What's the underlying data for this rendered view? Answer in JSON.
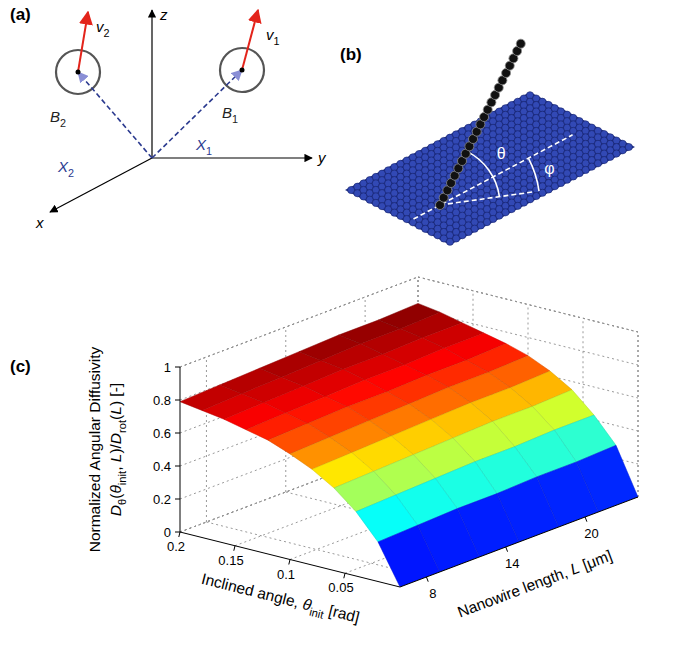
{
  "panel_a": {
    "label": "(a)",
    "axis_labels": [
      "z",
      "y",
      "x"
    ],
    "bodies": [
      {
        "name": [
          {
            "text": "B",
            "italic": true
          },
          {
            "text": "2",
            "sub": true
          }
        ],
        "velocity": [
          {
            "text": "v",
            "italic": true
          },
          {
            "text": "2",
            "sub": true
          }
        ],
        "position": [
          {
            "text": "X",
            "italic": true
          },
          {
            "text": "2",
            "sub": true
          }
        ]
      },
      {
        "name": [
          {
            "text": "B",
            "italic": true
          },
          {
            "text": "1",
            "sub": true
          }
        ],
        "velocity": [
          {
            "text": "v",
            "italic": true
          },
          {
            "text": "1",
            "sub": true
          }
        ],
        "position": [
          {
            "text": "X",
            "italic": true
          },
          {
            "text": "1",
            "sub": true
          }
        ]
      }
    ]
  },
  "panel_b": {
    "label": "(b)",
    "angles": [
      "θ",
      "φ"
    ]
  },
  "chart_data": {
    "type": "surface",
    "label": "(c)",
    "zlabel": [
      [
        {
          "text": "Normalized Angular Diffusivity"
        }
      ],
      [
        {
          "text": "D",
          "italic": true
        },
        {
          "text": "θ",
          "sub": true
        },
        {
          "text": "("
        },
        {
          "text": "θ",
          "italic": true
        },
        {
          "text": "init",
          "sub": true
        },
        {
          "text": ", "
        },
        {
          "text": "L",
          "italic": true
        },
        {
          "text": ")/"
        },
        {
          "text": "D",
          "italic": true
        },
        {
          "text": "rot",
          "sub": true
        },
        {
          "text": "("
        },
        {
          "text": "L",
          "italic": true
        },
        {
          "text": ") [-]"
        }
      ]
    ],
    "xlabel": [
      {
        "text": "Inclined angle, "
      },
      {
        "text": "θ",
        "italic": true
      },
      {
        "text": "init",
        "sub": true
      },
      {
        "text": " [rad]"
      }
    ],
    "ylabel": [
      {
        "text": "Nanowire length, "
      },
      {
        "text": "L",
        "italic": true
      },
      {
        "text": " [μm]"
      }
    ],
    "x": [
      0,
      0.02,
      0.04,
      0.06,
      0.08,
      0.1,
      0.12,
      0.14,
      0.16,
      0.18,
      0.2
    ],
    "y": [
      6,
      9,
      12,
      15,
      18,
      21,
      24
    ],
    "values": [
      [
        0,
        0.24,
        0.39,
        0.5,
        0.58,
        0.64,
        0.69,
        0.72,
        0.75,
        0.77,
        0.79
      ],
      [
        0,
        0.25,
        0.4,
        0.51,
        0.59,
        0.65,
        0.7,
        0.73,
        0.76,
        0.78,
        0.8
      ],
      [
        0,
        0.26,
        0.41,
        0.52,
        0.6,
        0.66,
        0.71,
        0.74,
        0.77,
        0.79,
        0.81
      ],
      [
        0,
        0.26,
        0.42,
        0.53,
        0.61,
        0.67,
        0.71,
        0.75,
        0.78,
        0.8,
        0.82
      ],
      [
        0,
        0.27,
        0.42,
        0.54,
        0.62,
        0.68,
        0.72,
        0.75,
        0.78,
        0.81,
        0.83
      ],
      [
        0,
        0.27,
        0.43,
        0.54,
        0.62,
        0.68,
        0.72,
        0.76,
        0.79,
        0.81,
        0.83
      ],
      [
        0,
        0.28,
        0.43,
        0.55,
        0.63,
        0.69,
        0.73,
        0.76,
        0.79,
        0.82,
        0.84
      ]
    ],
    "xlim": [
      0,
      0.2
    ],
    "xticks": [
      0.05,
      0.1,
      0.15,
      0.2
    ],
    "ylim": [
      6,
      24
    ],
    "yticks": [
      8,
      14,
      20
    ],
    "zlim": [
      0,
      1
    ],
    "zticks": [
      0,
      0.2,
      0.4,
      0.6,
      0.8,
      1
    ],
    "grid": true
  }
}
